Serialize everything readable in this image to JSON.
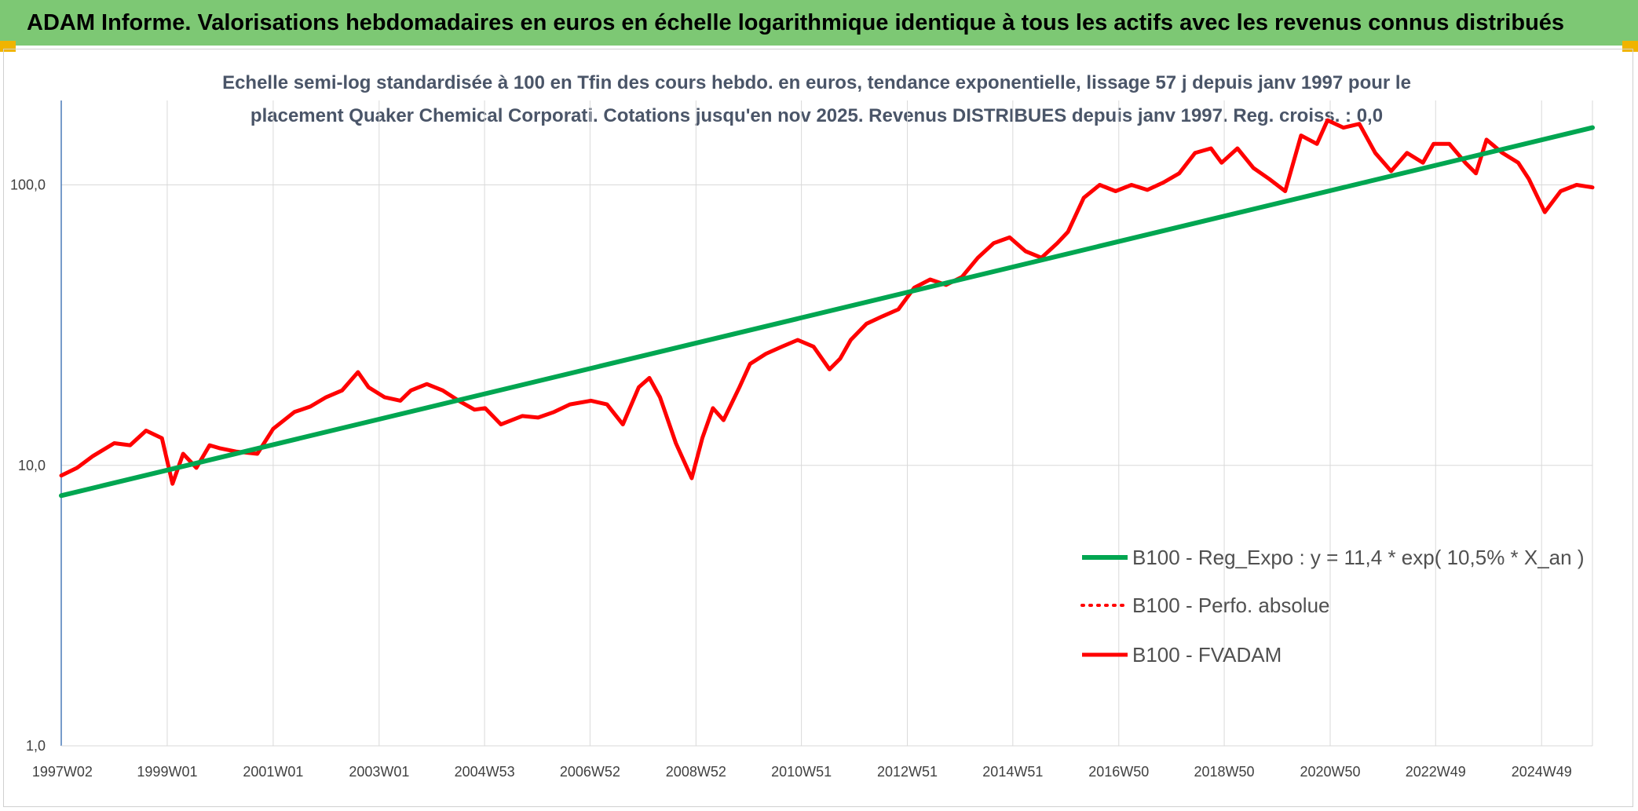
{
  "header": {
    "title": "ADAM Informe. Valorisations hebdomadaires en euros en échelle logarithmique identique à tous les actifs avec les revenus connus distribués"
  },
  "chart_data": {
    "type": "line",
    "title_line1": "Echelle semi-log standardisée à 100 en Tfin des cours hebdo. en euros, tendance exponentielle, lissage 57 j depuis janv 1997 pour le",
    "title_line2": "placement Quaker Chemical Corporati. Cotations jusqu'en nov 2025. Revenus DISTRIBUES depuis janv 1997. Reg. croiss. : 0,0",
    "y_scale": "log",
    "ylim": [
      1,
      200
    ],
    "y_ticks": [
      "1,0",
      "10,0",
      "100,0"
    ],
    "x_range": [
      1997.0,
      2025.9
    ],
    "x_tick_labels": [
      "1997W02",
      "1999W01",
      "2001W01",
      "2003W01",
      "2004W53",
      "2006W52",
      "2008W52",
      "2010W51",
      "2012W51",
      "2014W51",
      "2016W50",
      "2018W50",
      "2020W50",
      "2022W49",
      "2024W49"
    ],
    "x_tick_years": [
      1997.02,
      1999.0,
      2001.0,
      2003.0,
      2004.99,
      2006.98,
      2008.98,
      2010.97,
      2012.97,
      2014.96,
      2016.96,
      2018.95,
      2020.95,
      2022.94,
      2024.94
    ],
    "grid": true,
    "legend_position": "bottom-right",
    "colors": {
      "regression": "#00a651",
      "perfo": "#ff0000",
      "fvadam": "#ff0000",
      "grid": "#d9d9d9",
      "axis": "#4a7ab8"
    },
    "series": [
      {
        "name": "B100 - Reg_Expo : y = 11,4 * exp( 10,5% *  X_an )",
        "style": "solid-green",
        "x": [
          1997.0,
          2025.9
        ],
        "y": [
          7.8,
          160
        ]
      },
      {
        "name": "B100 - Perfo. absolue",
        "style": "dotted-red",
        "x": [],
        "y": []
      },
      {
        "name": "B100 - FVADAM",
        "style": "solid-red",
        "x": [
          1997.0,
          1997.3,
          1997.6,
          1998.0,
          1998.3,
          1998.6,
          1998.9,
          1999.1,
          1999.3,
          1999.55,
          1999.8,
          2000.0,
          2000.3,
          2000.7,
          2001.0,
          2001.4,
          2001.7,
          2002.0,
          2002.3,
          2002.6,
          2002.8,
          2003.1,
          2003.4,
          2003.6,
          2003.9,
          2004.2,
          2004.5,
          2004.8,
          2005.0,
          2005.3,
          2005.7,
          2006.0,
          2006.3,
          2006.6,
          2007.0,
          2007.3,
          2007.6,
          2007.9,
          2008.1,
          2008.3,
          2008.6,
          2008.9,
          2009.1,
          2009.3,
          2009.5,
          2009.8,
          2010.0,
          2010.3,
          2010.6,
          2010.9,
          2011.2,
          2011.5,
          2011.7,
          2011.9,
          2012.2,
          2012.5,
          2012.8,
          2013.1,
          2013.4,
          2013.7,
          2014.0,
          2014.3,
          2014.6,
          2014.9,
          2015.2,
          2015.5,
          2015.8,
          2016.0,
          2016.3,
          2016.6,
          2016.9,
          2017.2,
          2017.5,
          2017.8,
          2018.1,
          2018.4,
          2018.7,
          2018.9,
          2019.2,
          2019.5,
          2019.8,
          2020.1,
          2020.4,
          2020.7,
          2020.9,
          2021.2,
          2021.5,
          2021.8,
          2022.1,
          2022.4,
          2022.7,
          2022.9,
          2023.2,
          2023.5,
          2023.7,
          2023.9,
          2024.2,
          2024.5,
          2024.7,
          2025.0,
          2025.3,
          2025.6,
          2025.9
        ],
        "y": [
          9.2,
          9.8,
          10.8,
          12.0,
          11.8,
          13.3,
          12.5,
          8.6,
          11.0,
          9.8,
          11.8,
          11.5,
          11.2,
          11.0,
          13.5,
          15.5,
          16.2,
          17.5,
          18.5,
          21.5,
          19.0,
          17.5,
          17.0,
          18.5,
          19.5,
          18.5,
          17.0,
          15.8,
          16.0,
          14.0,
          15.0,
          14.8,
          15.5,
          16.5,
          17.0,
          16.5,
          14.0,
          19.0,
          20.5,
          17.5,
          12.0,
          9.0,
          12.5,
          16.0,
          14.5,
          19.0,
          23.0,
          25.0,
          26.5,
          28.0,
          26.5,
          22.0,
          24.0,
          28.0,
          32.0,
          34.0,
          36.0,
          43.0,
          46.0,
          44.0,
          47.0,
          55.0,
          62.0,
          65.0,
          58.0,
          55.0,
          62.0,
          68.0,
          90.0,
          100.0,
          95.0,
          100.0,
          96.0,
          102.0,
          110.0,
          130.0,
          135.0,
          120.0,
          135.0,
          115.0,
          105.0,
          95.0,
          150.0,
          140.0,
          170.0,
          160.0,
          165.0,
          130.0,
          112.0,
          130.0,
          120.0,
          140.0,
          140.0,
          120.0,
          110.0,
          145.0,
          130.0,
          120.0,
          105.0,
          80.0,
          95.0,
          100.0,
          98.0
        ]
      }
    ]
  }
}
